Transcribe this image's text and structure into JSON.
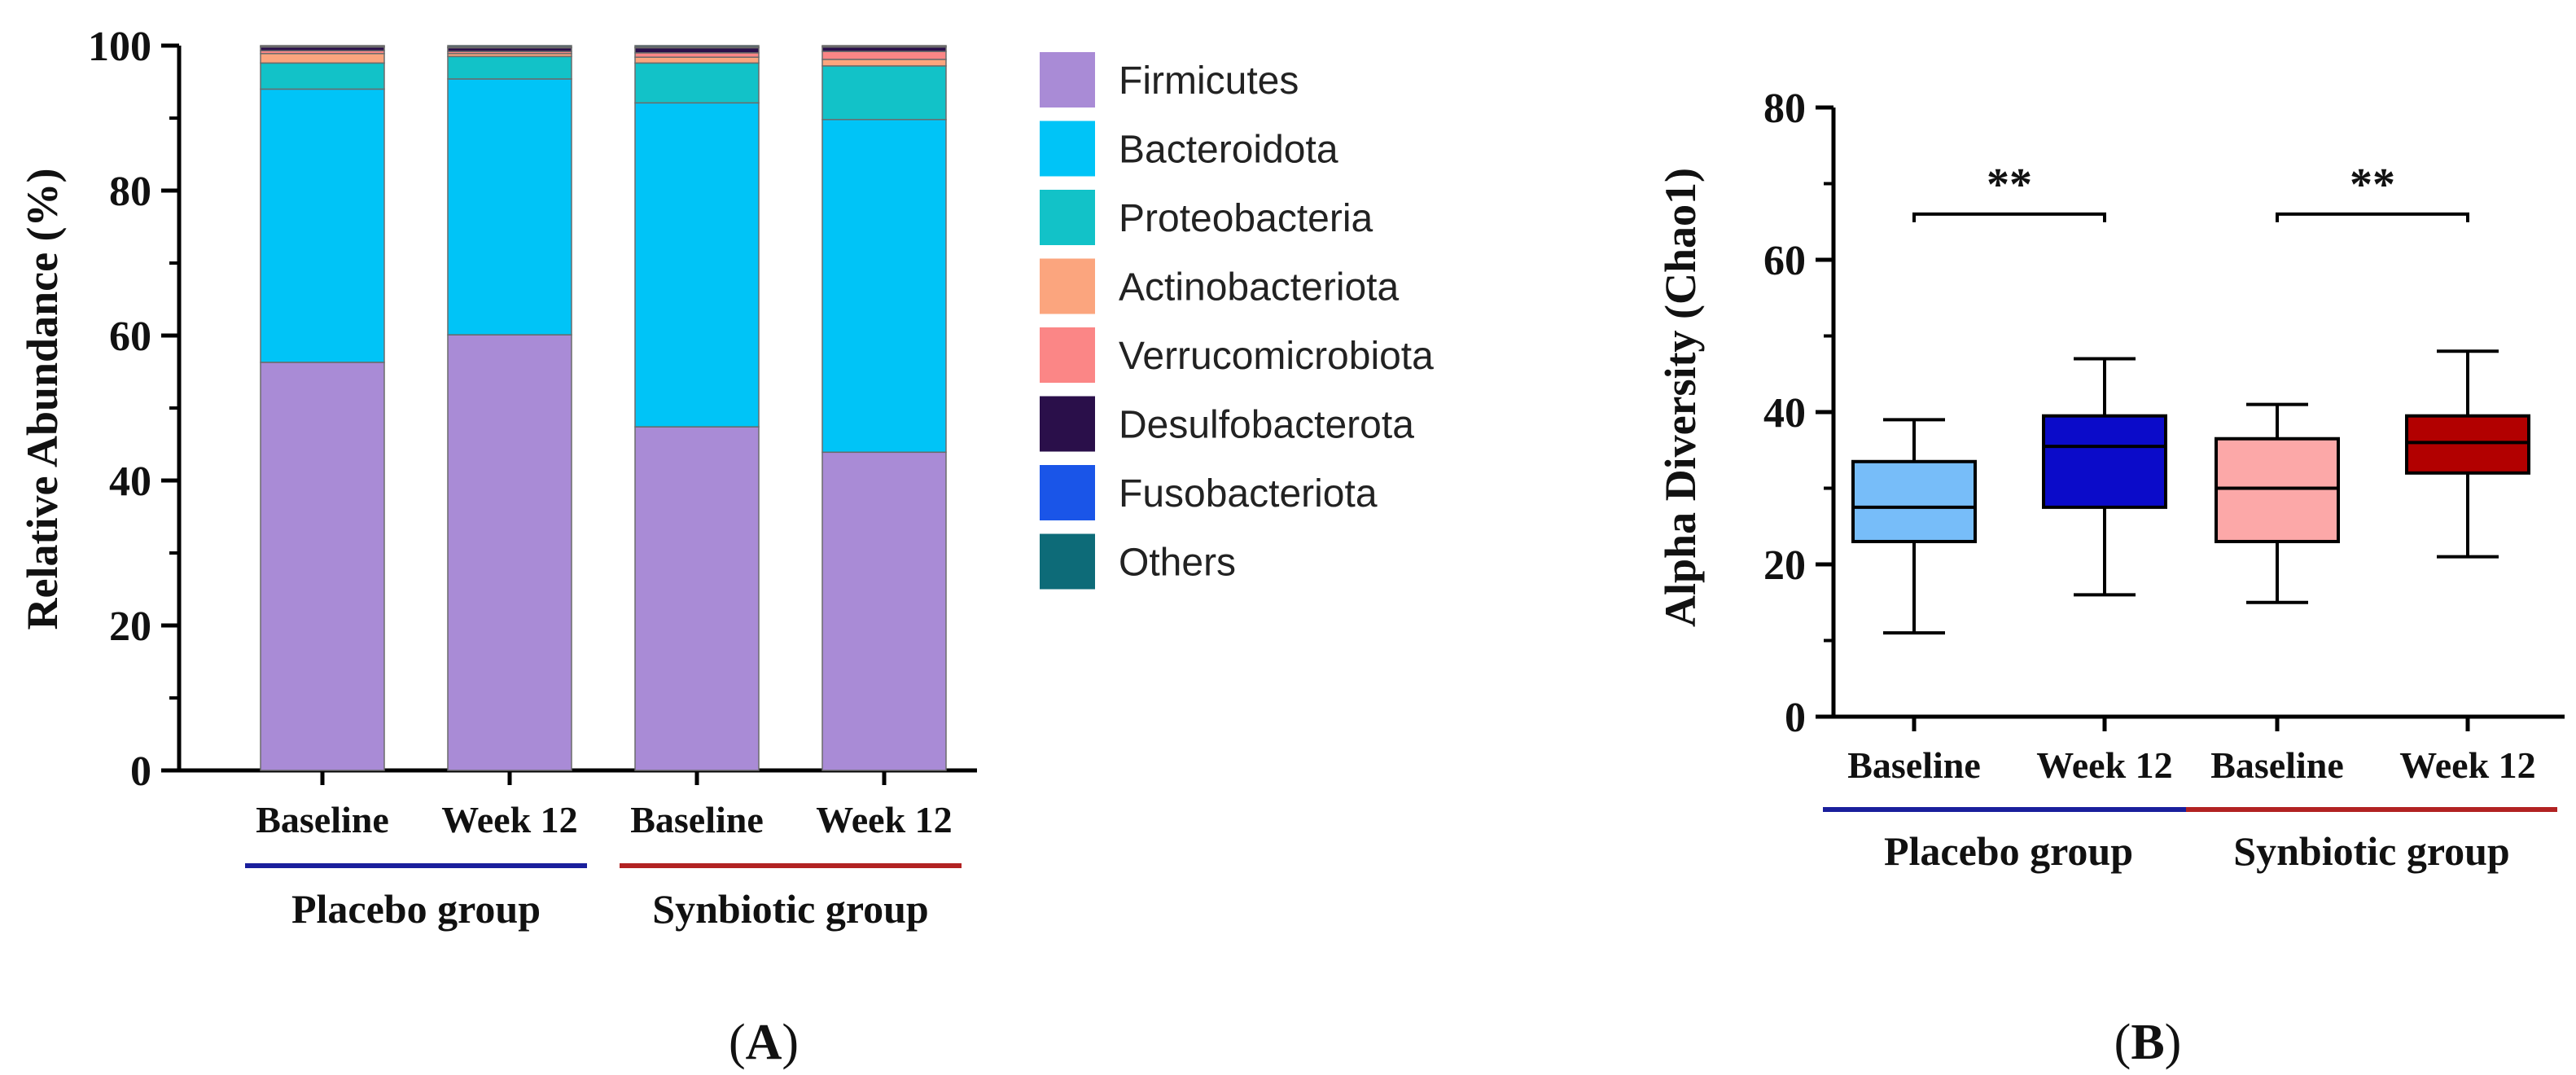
{
  "chart_data": [
    {
      "type": "bar",
      "stacked": true,
      "panel_label": "A",
      "ylabel": "Relative Abundance (%)",
      "ylim": [
        0,
        100
      ],
      "yticks": [
        "0",
        "20",
        "40",
        "60",
        "80",
        "100"
      ],
      "categories": [
        "Baseline",
        "Week 12",
        "Baseline",
        "Week 12"
      ],
      "groups": [
        {
          "name": "Placebo group",
          "color": "#1a1f9c",
          "category_indices": [
            0,
            1
          ]
        },
        {
          "name": "Synbiotic group",
          "color": "#b22222",
          "category_indices": [
            2,
            3
          ]
        }
      ],
      "series": [
        {
          "name": "Firmicutes",
          "color": "#a98bd6",
          "values": [
            56.3,
            60.1,
            47.4,
            43.9
          ]
        },
        {
          "name": "Bacteroidota",
          "color": "#00c4f7",
          "values": [
            37.7,
            35.3,
            44.7,
            45.9
          ]
        },
        {
          "name": "Proteobacteria",
          "color": "#12c2c8",
          "values": [
            3.6,
            3.1,
            5.5,
            7.4
          ]
        },
        {
          "name": "Actinobacteriota",
          "color": "#fba57e",
          "values": [
            1.3,
            0.4,
            0.8,
            0.9
          ]
        },
        {
          "name": "Verrucomicrobiota",
          "color": "#fb8686",
          "values": [
            0.4,
            0.3,
            0.6,
            1.1
          ]
        },
        {
          "name": "Desulfobacterota",
          "color": "#2a0f4a",
          "values": [
            0.5,
            0.5,
            0.7,
            0.6
          ]
        },
        {
          "name": "Fusobacteriota",
          "color": "#1a55e8",
          "values": [
            0.1,
            0.1,
            0.1,
            0.1
          ]
        },
        {
          "name": "Others",
          "color": "#0d6b78",
          "values": [
            0.1,
            0.2,
            0.2,
            0.1
          ]
        }
      ]
    },
    {
      "type": "box",
      "panel_label": "B",
      "ylabel": "Alpha Diversity (Chao1)",
      "ylim": [
        0,
        80
      ],
      "yticks": [
        "0",
        "20",
        "40",
        "60",
        "80"
      ],
      "categories": [
        "Baseline",
        "Week 12",
        "Baseline",
        "Week 12"
      ],
      "groups": [
        {
          "name": "Placebo group",
          "color": "#1a1f9c",
          "category_indices": [
            0,
            1
          ]
        },
        {
          "name": "Synbiotic group",
          "color": "#b22222",
          "category_indices": [
            2,
            3
          ]
        }
      ],
      "boxes": [
        {
          "min": 11,
          "q1": 23,
          "median": 27.5,
          "q3": 33.5,
          "max": 39,
          "color": "#77bdf9"
        },
        {
          "min": 16,
          "q1": 27.5,
          "median": 35.5,
          "q3": 39.5,
          "max": 47,
          "color": "#0b0bc9"
        },
        {
          "min": 15,
          "q1": 23,
          "median": 30,
          "q3": 36.5,
          "max": 41,
          "color": "#fca8a8"
        },
        {
          "min": 21,
          "q1": 32,
          "median": 36,
          "q3": 39.5,
          "max": 48,
          "color": "#b20000"
        }
      ],
      "significance": [
        {
          "pair": [
            0,
            1
          ],
          "label": "**",
          "y": 66
        },
        {
          "pair": [
            2,
            3
          ],
          "label": "**",
          "y": 66
        }
      ]
    }
  ]
}
